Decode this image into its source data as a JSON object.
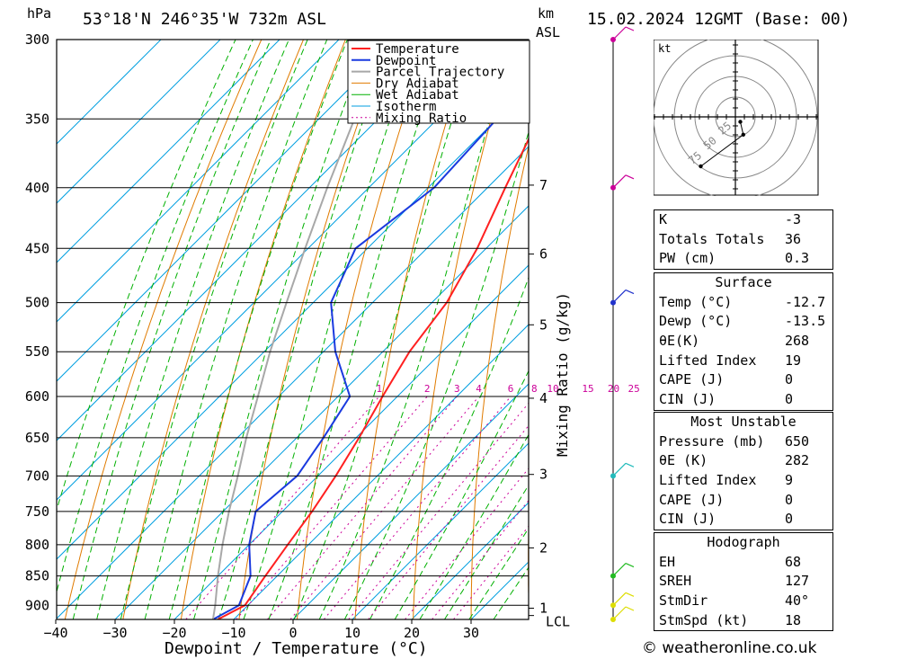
{
  "header": {
    "location": "53°18'N  246°35'W  732m  ASL",
    "datetime": "15.02.2024  12GMT  (Base: 00)",
    "hpa_unit": "hPa",
    "km_unit": "km",
    "asl_unit": "ASL"
  },
  "chart_data": {
    "type": "line",
    "subtype": "skew-t log-p",
    "xlabel": "Dewpoint / Temperature (°C)",
    "y2label": "Mixing Ratio (g/kg)",
    "xlim": [
      -40,
      40
    ],
    "pressure_range_hpa": [
      300,
      925
    ],
    "x_ticks": [
      -40,
      -30,
      -20,
      -10,
      0,
      10,
      20,
      30
    ],
    "pressure_ticks": [
      300,
      350,
      400,
      450,
      500,
      550,
      600,
      650,
      700,
      750,
      800,
      850,
      900
    ],
    "km_ticks": [
      {
        "label": "7",
        "p": 398
      },
      {
        "label": "6",
        "p": 455
      },
      {
        "label": "5",
        "p": 522
      },
      {
        "label": "4",
        "p": 602
      },
      {
        "label": "3",
        "p": 698
      },
      {
        "label": "2",
        "p": 805
      },
      {
        "label": "1",
        "p": 905
      },
      {
        "label": "LCL",
        "p": 918
      }
    ],
    "mixing_ratio_labels": [
      "1",
      "2",
      "3",
      "4",
      "6",
      "8",
      "10",
      "15",
      "20",
      "25"
    ],
    "mixing_ratio_values": [
      1,
      2,
      3,
      4,
      6,
      8,
      10,
      15,
      20,
      25
    ],
    "legend": [
      "Temperature",
      "Dewpoint",
      "Parcel Trajectory",
      "Dry Adiabat",
      "Wet Adiabat",
      "Isotherm",
      "Mixing Ratio"
    ],
    "series": [
      {
        "name": "Temperature",
        "color": "#ff2020",
        "points": [
          [
            925,
            -12.7
          ],
          [
            900,
            -10.5
          ],
          [
            850,
            -12
          ],
          [
            800,
            -13.5
          ],
          [
            750,
            -15
          ],
          [
            700,
            -17
          ],
          [
            650,
            -19.5
          ],
          [
            600,
            -22.5
          ],
          [
            550,
            -25.5
          ],
          [
            500,
            -27.5
          ],
          [
            450,
            -31.5
          ],
          [
            400,
            -37
          ],
          [
            350,
            -43
          ],
          [
            300,
            -45
          ]
        ]
      },
      {
        "name": "Dewpoint",
        "color": "#1a3adf",
        "points": [
          [
            925,
            -13.5
          ],
          [
            900,
            -11.5
          ],
          [
            850,
            -14.5
          ],
          [
            800,
            -20
          ],
          [
            750,
            -24.5
          ],
          [
            700,
            -23.5
          ],
          [
            650,
            -25.5
          ],
          [
            600,
            -28
          ],
          [
            550,
            -38
          ],
          [
            500,
            -47
          ],
          [
            450,
            -52
          ],
          [
            400,
            -49
          ],
          [
            350,
            -50
          ],
          [
            300,
            -60
          ]
        ]
      },
      {
        "name": "Parcel Trajectory",
        "color": "#a8a8a8",
        "points": [
          [
            925,
            -13.5
          ],
          [
            900,
            -15.5
          ],
          [
            850,
            -20
          ],
          [
            800,
            -24.5
          ],
          [
            750,
            -29
          ],
          [
            700,
            -33.5
          ],
          [
            650,
            -38.5
          ],
          [
            600,
            -43.5
          ],
          [
            550,
            -49
          ],
          [
            500,
            -54.5
          ],
          [
            450,
            -60.5
          ],
          [
            400,
            -67
          ],
          [
            350,
            -74
          ]
        ]
      }
    ],
    "wind_barbs": [
      {
        "p": 300,
        "color": "#cc0099"
      },
      {
        "p": 400,
        "color": "#cc0099"
      },
      {
        "p": 500,
        "color": "#2233cc"
      },
      {
        "p": 700,
        "color": "#22bbbb"
      },
      {
        "p": 850,
        "color": "#22bb22"
      },
      {
        "p": 900,
        "color": "#dddd00"
      },
      {
        "p": 925,
        "color": "#dddd00"
      }
    ],
    "hodograph": {
      "unit": "kt",
      "ring_labels": [
        "25",
        "50",
        "75"
      ],
      "trace": [
        [
          5,
          -5
        ],
        [
          8,
          -18
        ],
        [
          -35,
          -50
        ]
      ]
    }
  },
  "indices": {
    "k_label": "K",
    "k_value": "-3",
    "tt_label": "Totals Totals",
    "tt_value": "36",
    "pw_label": "PW (cm)",
    "pw_value": "0.3"
  },
  "surface": {
    "title": "Surface",
    "rows": [
      {
        "label": "Temp (°C)",
        "value": "-12.7"
      },
      {
        "label": "Dewp (°C)",
        "value": "-13.5"
      },
      {
        "label": "θE(K)",
        "value": "268"
      },
      {
        "label": "Lifted Index",
        "value": "19"
      },
      {
        "label": "CAPE (J)",
        "value": "0"
      },
      {
        "label": "CIN (J)",
        "value": "0"
      }
    ]
  },
  "most_unstable": {
    "title": "Most Unstable",
    "rows": [
      {
        "label": "Pressure (mb)",
        "value": "650"
      },
      {
        "label": "θE (K)",
        "value": "282"
      },
      {
        "label": "Lifted Index",
        "value": "9"
      },
      {
        "label": "CAPE (J)",
        "value": "0"
      },
      {
        "label": "CIN (J)",
        "value": "0"
      }
    ]
  },
  "hodograph_panel": {
    "title": "Hodograph",
    "rows": [
      {
        "label": "EH",
        "value": "68"
      },
      {
        "label": "SREH",
        "value": "127"
      },
      {
        "label": "StmDir",
        "value": "40°"
      },
      {
        "label": "StmSpd (kt)",
        "value": "18"
      }
    ]
  },
  "credit": "© weatheronline.co.uk",
  "colors": {
    "temperature": "#ff2020",
    "dewpoint": "#1a3adf",
    "parcel": "#a8a8a8",
    "dry_adiabat": "#e07b00",
    "wet_adiabat": "#00b000",
    "isotherm": "#009fe0",
    "mixing_ratio": "#cc0099"
  }
}
